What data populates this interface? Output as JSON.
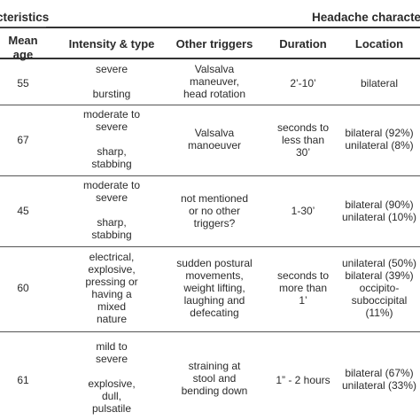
{
  "group_headers": {
    "left": "cteristics",
    "right": "Headache characteris"
  },
  "columns": {
    "mean_age": [
      "Mean",
      "age"
    ],
    "intensity_type": "Intensity & type",
    "other_triggers": "Other triggers",
    "duration": "Duration",
    "location": "Location"
  },
  "rows": [
    {
      "age": "55",
      "intensity_top": [
        "severe"
      ],
      "intensity_bottom": [
        "bursting"
      ],
      "triggers": [
        "Valsalva",
        "maneuver,",
        "head rotation"
      ],
      "duration": [
        "2’-10’"
      ],
      "location": [
        "bilateral"
      ]
    },
    {
      "age": "67",
      "intensity_top": [
        "moderate to",
        "severe"
      ],
      "intensity_bottom": [
        "sharp,",
        "stabbing"
      ],
      "triggers": [
        "Valsalva",
        "manoeuver"
      ],
      "duration": [
        "seconds to",
        "less than",
        "30’"
      ],
      "location": [
        "bilateral (92%)",
        "unilateral (8%)"
      ]
    },
    {
      "age": "45",
      "intensity_top": [
        "moderate to",
        "severe"
      ],
      "intensity_bottom": [
        "sharp,",
        "stabbing"
      ],
      "triggers": [
        "not mentioned",
        "or no other",
        "triggers?"
      ],
      "duration": [
        "1-30’"
      ],
      "location": [
        "bilateral (90%)",
        "unilateral (10%)"
      ]
    },
    {
      "age": "60",
      "intensity_top": [
        "electrical,",
        "explosive,",
        "pressing or",
        "having a",
        "mixed",
        "nature"
      ],
      "intensity_bottom": [],
      "triggers": [
        "sudden postural",
        "movements,",
        "weight lifting,",
        "laughing and",
        "defecating"
      ],
      "duration": [
        "seconds to",
        "more than",
        "1’"
      ],
      "location": [
        "unilateral (50%)",
        "bilateral (39%)",
        "occipito-",
        "suboccipital",
        "(11%)"
      ]
    },
    {
      "age": "61",
      "intensity_top": [
        "mild to",
        "severe"
      ],
      "intensity_bottom": [
        "explosive,",
        "dull,",
        "pulsatile"
      ],
      "triggers": [
        "straining at",
        "stool and",
        "bending down"
      ],
      "duration": [
        "1” - 2 hours"
      ],
      "location": [
        "bilateral (67%)",
        "unilateral (33%)"
      ]
    }
  ]
}
